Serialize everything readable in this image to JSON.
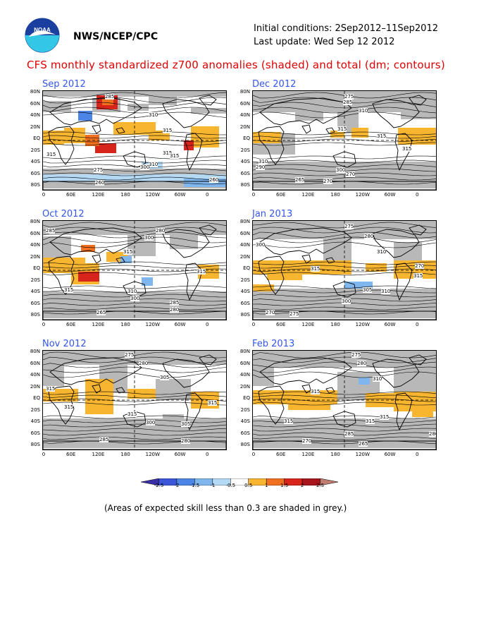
{
  "header": {
    "agency": "NWS/NCEP/CPC",
    "initial_conditions": "Initial conditions: 2Sep2012–11Sep2012",
    "last_update": "Last update: Wed Sep 12 2012",
    "title": "CFS monthly standardized z700 anomalies (shaded) and total (dm; contours)"
  },
  "logo": {
    "icon": "noaa-logo",
    "colors": {
      "top": "#1a3f9e",
      "bottom": "#33c7e6",
      "bird": "#ffffff"
    }
  },
  "lat_labels": [
    "80N",
    "60N",
    "40N",
    "20N",
    "EQ",
    "20S",
    "40S",
    "60S",
    "80S"
  ],
  "lon_labels": [
    "0",
    "60E",
    "120E",
    "180",
    "120W",
    "60W",
    "0"
  ],
  "panels": [
    {
      "title": "Sep 2012",
      "contours": [
        "285",
        "310",
        "315",
        "315",
        "315",
        "315",
        "310",
        "300",
        "275",
        "260",
        "260"
      ]
    },
    {
      "title": "Dec 2012",
      "contours": [
        "275",
        "285",
        "310",
        "315",
        "315",
        "315",
        "310",
        "300",
        "270",
        "265",
        "270",
        "290"
      ]
    },
    {
      "title": "Oct 2012",
      "contours": [
        "285",
        "280",
        "300",
        "315",
        "315",
        "315",
        "310",
        "300",
        "285",
        "280",
        "265"
      ]
    },
    {
      "title": "Jan 2013",
      "contours": [
        "275",
        "280",
        "300",
        "310",
        "315",
        "315",
        "305",
        "310",
        "300",
        "270",
        "275",
        "270"
      ]
    },
    {
      "title": "Nov 2012",
      "contours": [
        "275",
        "280",
        "305",
        "315",
        "315",
        "315",
        "315",
        "305",
        "300",
        "285",
        "280"
      ]
    },
    {
      "title": "Feb 2013",
      "contours": [
        "275",
        "280",
        "310",
        "315",
        "315",
        "315",
        "315",
        "285",
        "280",
        "270",
        "265"
      ]
    }
  ],
  "colorbar": {
    "ticks": [
      "-2.5",
      "-2",
      "-1.5",
      "-1",
      "-0.5",
      "0.5",
      "1",
      "1.5",
      "2",
      "2.5"
    ],
    "colors": [
      "#3a2ea8",
      "#3b56d8",
      "#4c85e6",
      "#7fb6ee",
      "#b4d9f5",
      "#ffffff",
      "#f8b530",
      "#f07020",
      "#d8251c",
      "#a8141c",
      "#c07c70"
    ]
  },
  "note": "(Areas of expected skill less than 0.3 are shaded in grey.)"
}
